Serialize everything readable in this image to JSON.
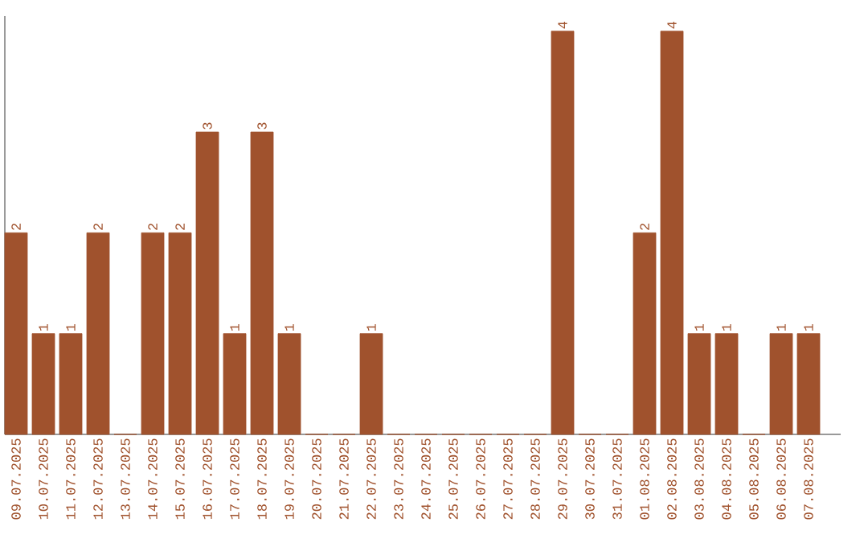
{
  "chart_data": {
    "type": "bar",
    "categories": [
      "09.07.2025",
      "10.07.2025",
      "11.07.2025",
      "12.07.2025",
      "13.07.2025",
      "14.07.2025",
      "15.07.2025",
      "16.07.2025",
      "17.07.2025",
      "18.07.2025",
      "19.07.2025",
      "20.07.2025",
      "21.07.2025",
      "22.07.2025",
      "23.07.2025",
      "24.07.2025",
      "25.07.2025",
      "26.07.2025",
      "27.07.2025",
      "28.07.2025",
      "29.07.2025",
      "30.07.2025",
      "31.07.2025",
      "01.08.2025",
      "02.08.2025",
      "03.08.2025",
      "04.08.2025",
      "05.08.2025",
      "06.08.2025",
      "07.08.2025"
    ],
    "values": [
      2,
      1,
      1,
      2,
      0,
      2,
      2,
      3,
      1,
      3,
      1,
      0,
      0,
      1,
      0,
      0,
      0,
      0,
      0,
      0,
      4,
      0,
      0,
      2,
      4,
      1,
      1,
      0,
      1,
      1
    ],
    "value_labels": [
      "2",
      "1",
      "1",
      "2",
      null,
      "2",
      "2",
      "3",
      "1",
      "3",
      "1",
      null,
      null,
      "1",
      null,
      null,
      null,
      null,
      null,
      null,
      "4",
      null,
      null,
      "2",
      "4",
      "1",
      "1",
      null,
      "1",
      "1"
    ],
    "color": "#a0522d",
    "ylim": [
      0,
      4.15
    ],
    "tick_labels": "x"
  }
}
